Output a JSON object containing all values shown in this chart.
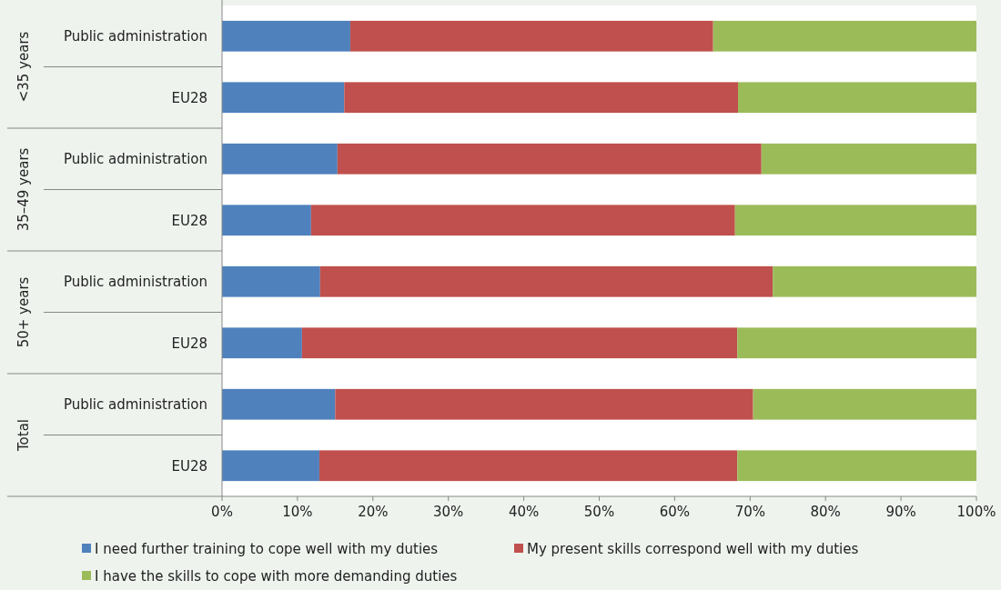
{
  "chart_data": {
    "type": "bar",
    "orientation": "horizontal",
    "stacked": true,
    "categories": [
      "Public administration",
      "EU28",
      "Public administration",
      "EU28",
      "Public administration",
      "EU28",
      "Public administration",
      "EU28"
    ],
    "series": [
      {
        "name": "I need further training to cope well with my duties",
        "color": "#4f81bd",
        "values": [
          17.0,
          16.2,
          15.3,
          11.8,
          13.0,
          10.6,
          15.0,
          12.9
        ]
      },
      {
        "name": "My present skills correspond well with my duties",
        "color": "#c0504d",
        "values": [
          48.1,
          52.2,
          56.2,
          56.2,
          60.0,
          57.7,
          55.4,
          55.4
        ]
      },
      {
        "name": "I have the skills to cope with more demanding duties",
        "color": "#9bbb59",
        "values": [
          34.9,
          31.6,
          28.5,
          32.0,
          27.0,
          31.7,
          29.6,
          31.7
        ]
      }
    ],
    "xlim": [
      0,
      100
    ],
    "xticks": [
      {
        "value": 0,
        "label": "0%"
      },
      {
        "value": 10,
        "label": "10%"
      },
      {
        "value": 20,
        "label": "20%"
      },
      {
        "value": 30,
        "label": "30%"
      },
      {
        "value": 40,
        "label": "40%"
      },
      {
        "value": 50,
        "label": "50%"
      },
      {
        "value": 60,
        "label": "60%"
      },
      {
        "value": 70,
        "label": "70%"
      },
      {
        "value": 80,
        "label": "80%"
      },
      {
        "value": 90,
        "label": "90%"
      },
      {
        "value": 100,
        "label": "100%"
      }
    ],
    "annotations": [
      "<35 years",
      "35–49 years",
      "50+ years",
      "Total"
    ],
    "legend": "bottom"
  }
}
